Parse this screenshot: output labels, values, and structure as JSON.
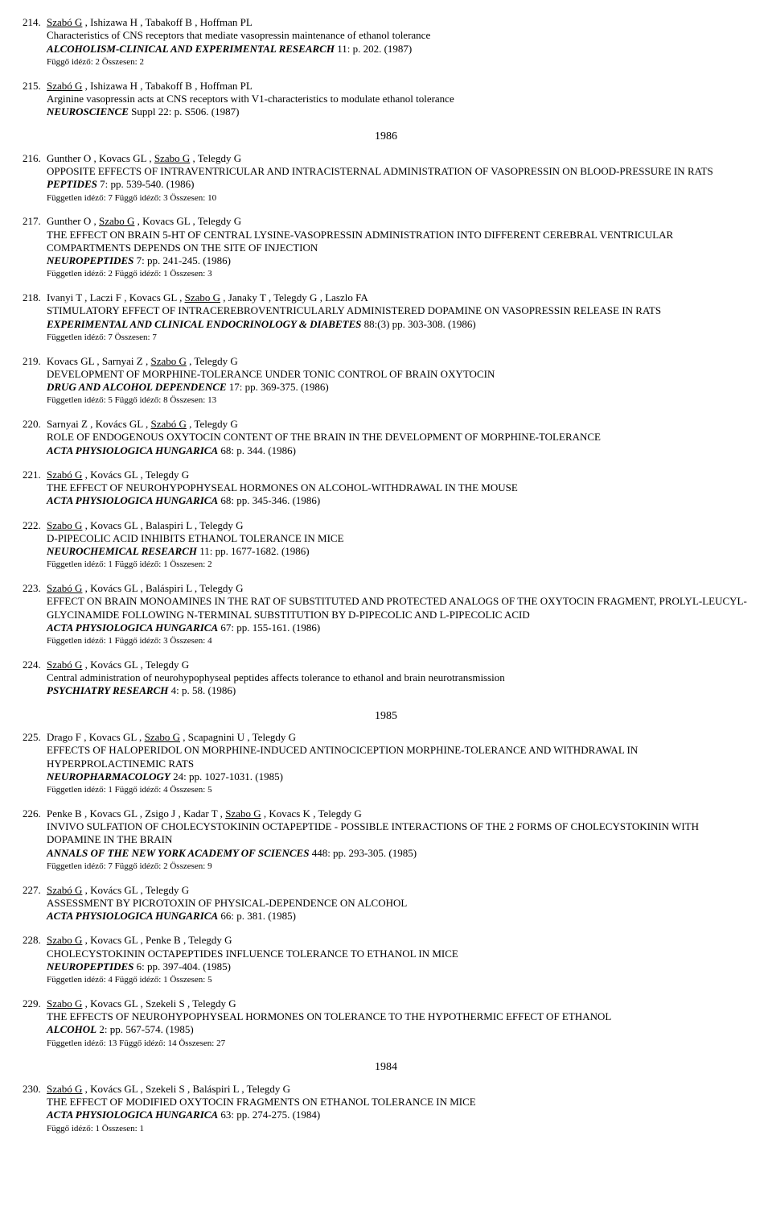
{
  "entries": [
    {
      "num": "214.",
      "authors": "<u>Szabó G</u> , Ishizawa H , Tabakoff B , Hoffman PL",
      "title": "Characteristics of CNS receptors that mediate vasopressin maintenance of ethanol tolerance",
      "journal": "ALCOHOLISM-CLINICAL AND EXPERIMENTAL RESEARCH",
      "rest": " 11: p. 202. (1987)",
      "cite": "Függő idéző: 2 Összesen: 2",
      "yearAfter": ""
    },
    {
      "num": "215.",
      "authors": "<u>Szabó G</u> , Ishizawa H , Tabakoff B , Hoffman PL",
      "title": "Arginine vasopressin acts at CNS receptors with V1-characteristics to modulate ethanol tolerance",
      "journal": "NEUROSCIENCE",
      "rest": " Suppl 22: p. S506. (1987)",
      "cite": "",
      "yearAfter": "1986"
    },
    {
      "num": "216.",
      "authors": "Gunther O , Kovacs GL , <u>Szabo G</u> , Telegdy G",
      "title": "OPPOSITE EFFECTS OF INTRAVENTRICULAR AND INTRACISTERNAL ADMINISTRATION OF VASOPRESSIN ON BLOOD-PRESSURE IN RATS",
      "journal": "PEPTIDES",
      "rest": " 7: pp. 539-540. (1986)",
      "cite": "Független idéző: 7 Függő idéző: 3 Összesen: 10",
      "yearAfter": ""
    },
    {
      "num": "217.",
      "authors": "Gunther O , <u>Szabo G</u> , Kovacs GL , Telegdy G",
      "title": "THE EFFECT ON BRAIN 5-HT OF CENTRAL LYSINE-VASOPRESSIN ADMINISTRATION INTO DIFFERENT CEREBRAL VENTRICULAR COMPARTMENTS DEPENDS ON THE SITE OF INJECTION",
      "journal": "NEUROPEPTIDES",
      "rest": " 7: pp. 241-245. (1986)",
      "cite": "Független idéző: 2 Függő idéző: 1 Összesen: 3",
      "yearAfter": ""
    },
    {
      "num": "218.",
      "authors": "Ivanyi T , Laczi F , Kovacs GL , <u>Szabo G</u> , Janaky T , Telegdy G , Laszlo FA",
      "title": "STIMULATORY EFFECT OF INTRACEREBROVENTRICULARLY ADMINISTERED DOPAMINE ON VASOPRESSIN RELEASE IN RATS",
      "journal": "EXPERIMENTAL AND CLINICAL ENDOCRINOLOGY & DIABETES",
      "rest": " 88:(3) pp. 303-308. (1986)",
      "cite": "Független idéző: 7 Összesen: 7",
      "yearAfter": ""
    },
    {
      "num": "219.",
      "authors": "Kovacs GL , Sarnyai Z , <u>Szabo G</u> , Telegdy G",
      "title": "DEVELOPMENT OF MORPHINE-TOLERANCE UNDER TONIC CONTROL OF BRAIN OXYTOCIN",
      "journal": "DRUG AND ALCOHOL DEPENDENCE",
      "rest": " 17: pp. 369-375. (1986)",
      "cite": "Független idéző: 5 Függő idéző: 8 Összesen: 13",
      "yearAfter": ""
    },
    {
      "num": "220.",
      "authors": "Sarnyai Z , Kovács GL , <u>Szabó G</u> , Telegdy G",
      "title": "ROLE OF ENDOGENOUS OXYTOCIN CONTENT OF THE BRAIN IN THE DEVELOPMENT OF MORPHINE-TOLERANCE",
      "journal": "ACTA PHYSIOLOGICA HUNGARICA",
      "rest": " 68: p. 344. (1986)",
      "cite": "",
      "yearAfter": ""
    },
    {
      "num": "221.",
      "authors": "<u>Szabó G</u> , Kovács GL , Telegdy G",
      "title": "THE EFFECT OF NEUROHYPOPHYSEAL HORMONES ON ALCOHOL-WITHDRAWAL IN THE MOUSE",
      "journal": "ACTA PHYSIOLOGICA HUNGARICA",
      "rest": " 68: pp. 345-346. (1986)",
      "cite": "",
      "yearAfter": ""
    },
    {
      "num": "222.",
      "authors": "<u>Szabo G</u> , Kovacs GL , Balaspiri L , Telegdy G",
      "title": "D-PIPECOLIC ACID INHIBITS ETHANOL TOLERANCE IN MICE",
      "journal": "NEUROCHEMICAL RESEARCH",
      "rest": " 11: pp. 1677-1682. (1986)",
      "cite": "Független idéző: 1 Függő idéző: 1 Összesen: 2",
      "yearAfter": ""
    },
    {
      "num": "223.",
      "authors": "<u>Szabó G</u> , Kovács GL , Baláspiri L , Telegdy G",
      "title": "EFFECT ON BRAIN MONOAMINES IN THE RAT OF SUBSTITUTED AND PROTECTED ANALOGS OF THE OXYTOCIN FRAGMENT, PROLYL-LEUCYL- GLYCINAMIDE FOLLOWING N-TERMINAL SUBSTITUTION BY D-PIPECOLIC AND L-PIPECOLIC ACID",
      "journal": "ACTA PHYSIOLOGICA HUNGARICA",
      "rest": " 67: pp. 155-161. (1986)",
      "cite": "Független idéző: 1 Függő idéző: 3 Összesen: 4",
      "yearAfter": ""
    },
    {
      "num": "224.",
      "authors": "<u>Szabó G</u> , Kovács GL , Telegdy G",
      "title": "Central administration of neurohypophyseal peptides affects tolerance to ethanol and brain neurotransmission",
      "journal": "PSYCHIATRY RESEARCH",
      "rest": " 4: p. 58. (1986)",
      "cite": "",
      "yearAfter": "1985"
    },
    {
      "num": "225.",
      "authors": "Drago F , Kovacs GL , <u>Szabo G</u> , Scapagnini U , Telegdy G",
      "title": "EFFECTS OF HALOPERIDOL ON MORPHINE-INDUCED ANTINOCICEPTION MORPHINE-TOLERANCE AND WITHDRAWAL IN HYPERPROLACTINEMIC RATS",
      "journal": "NEUROPHARMACOLOGY",
      "rest": " 24: pp. 1027-1031. (1985)",
      "cite": "Független idéző: 1 Függő idéző: 4 Összesen: 5",
      "yearAfter": ""
    },
    {
      "num": "226.",
      "authors": "Penke B , Kovacs GL , Zsigo J , Kadar T , <u>Szabo G</u> , Kovacs K , Telegdy G",
      "title": "INVIVO SULFATION OF CHOLECYSTOKININ OCTAPEPTIDE - POSSIBLE INTERACTIONS OF THE 2 FORMS OF CHOLECYSTOKININ WITH DOPAMINE IN THE BRAIN",
      "journal": "ANNALS OF THE NEW YORK ACADEMY OF SCIENCES",
      "rest": " 448: pp. 293-305. (1985)",
      "cite": "Független idéző: 7 Függő idéző: 2 Összesen: 9",
      "yearAfter": ""
    },
    {
      "num": "227.",
      "authors": "<u>Szabó G</u> , Kovács GL , Telegdy G",
      "title": "ASSESSMENT BY PICROTOXIN OF PHYSICAL-DEPENDENCE ON ALCOHOL",
      "journal": "ACTA PHYSIOLOGICA HUNGARICA",
      "rest": " 66: p. 381. (1985)",
      "cite": "",
      "yearAfter": ""
    },
    {
      "num": "228.",
      "authors": "<u>Szabo G</u> , Kovacs GL , Penke B , Telegdy G",
      "title": "CHOLECYSTOKININ OCTAPEPTIDES INFLUENCE TOLERANCE TO ETHANOL IN MICE",
      "journal": "NEUROPEPTIDES",
      "rest": " 6: pp. 397-404. (1985)",
      "cite": "Független idéző: 4 Függő idéző: 1 Összesen: 5",
      "yearAfter": ""
    },
    {
      "num": "229.",
      "authors": "<u>Szabo G</u> , Kovacs GL , Szekeli S , Telegdy G",
      "title": "THE EFFECTS OF NEUROHYPOPHYSEAL HORMONES ON TOLERANCE TO THE HYPOTHERMIC EFFECT OF ETHANOL",
      "journal": "ALCOHOL",
      "rest": " 2: pp. 567-574. (1985)",
      "cite": "Független idéző: 13 Függő idéző: 14 Összesen: 27",
      "yearAfter": "1984"
    },
    {
      "num": "230.",
      "authors": "<u>Szabó G</u> , Kovács GL , Szekeli S , Baláspiri L , Telegdy G",
      "title": "THE EFFECT OF MODIFIED OXYTOCIN FRAGMENTS ON ETHANOL TOLERANCE IN MICE",
      "journal": "ACTA PHYSIOLOGICA HUNGARICA",
      "rest": " 63: pp. 274-275. (1984)",
      "cite": "Függő idéző: 1 Összesen: 1",
      "yearAfter": ""
    }
  ]
}
